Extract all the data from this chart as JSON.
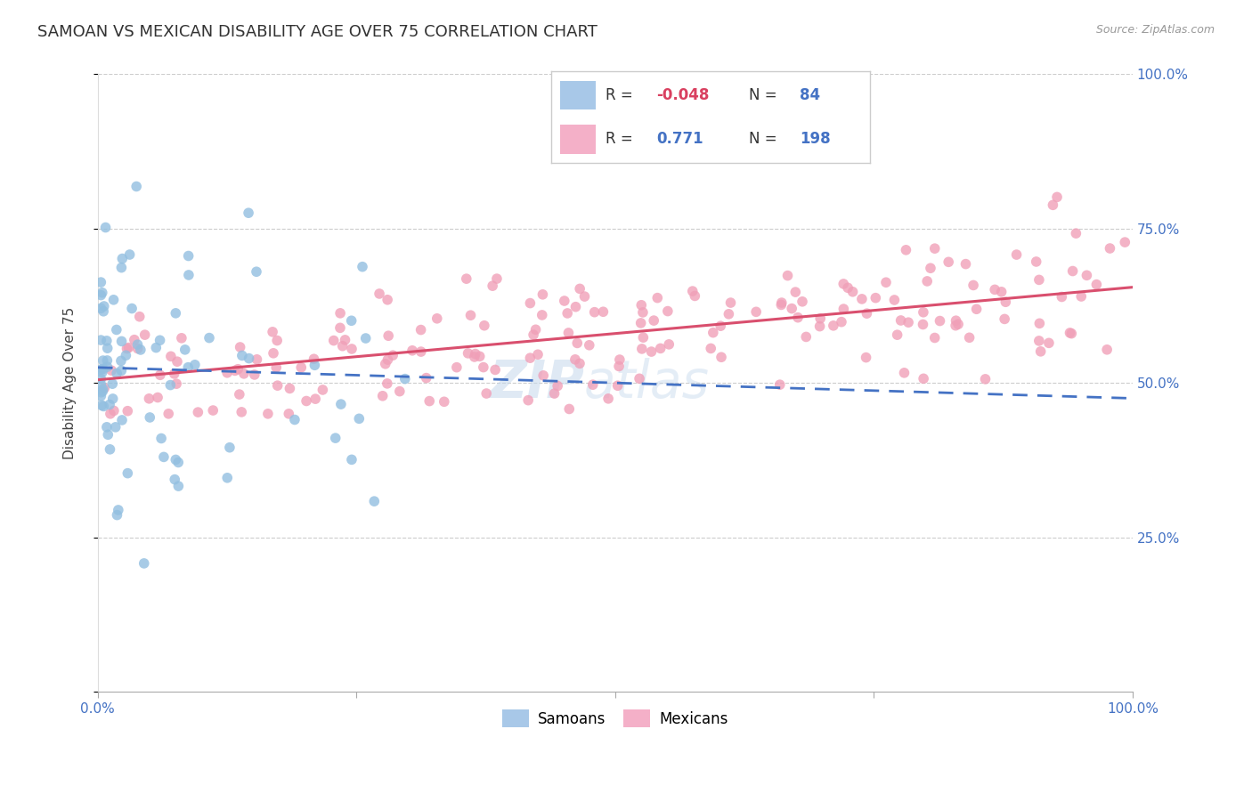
{
  "title": "SAMOAN VS MEXICAN DISABILITY AGE OVER 75 CORRELATION CHART",
  "source": "Source: ZipAtlas.com",
  "ylabel": "Disability Age Over 75",
  "r_samoan": -0.048,
  "n_samoan": 84,
  "r_mexican": 0.771,
  "n_mexican": 198,
  "samoan_color": "#92bfe0",
  "mexican_color": "#f0a0b8",
  "samoan_line_color": "#4472c4",
  "mexican_line_color": "#d94f6e",
  "background_color": "#ffffff",
  "title_fontsize": 13,
  "axis_label_fontsize": 11,
  "tick_fontsize": 11,
  "legend_fontsize": 12,
  "r_value_fontsize": 13,
  "n_value_fontsize": 13
}
